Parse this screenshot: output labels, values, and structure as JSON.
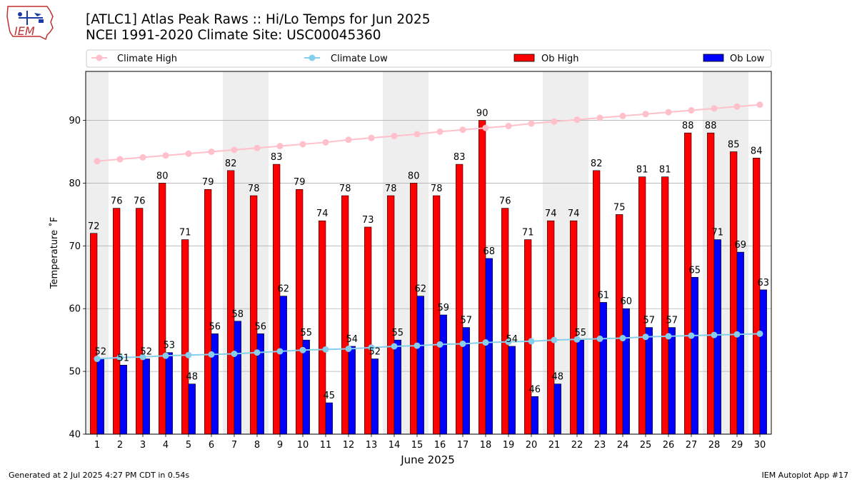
{
  "header": {
    "title_line1": "[ATLC1] Atlas Peak Raws :: Hi/Lo Temps for Jun 2025",
    "title_line2": "NCEI 1991-2020 Climate Site: USC00045360",
    "logo_text": "IEM"
  },
  "footer": {
    "generated": "Generated at 2 Jul 2025 4:27 PM CDT in 0.54s",
    "app": "IEM Autoplot App #17"
  },
  "chart_data": {
    "type": "bar",
    "xlabel": "June 2025",
    "ylabel": "Temperature ˚F",
    "ylim": [
      40,
      97.8
    ],
    "yticks": [
      40,
      50,
      60,
      70,
      80,
      90
    ],
    "grid": true,
    "legend_placement": "top",
    "categories": [
      "1",
      "2",
      "3",
      "4",
      "5",
      "6",
      "7",
      "8",
      "9",
      "10",
      "11",
      "12",
      "13",
      "14",
      "15",
      "16",
      "17",
      "18",
      "19",
      "20",
      "21",
      "22",
      "23",
      "24",
      "25",
      "26",
      "27",
      "28",
      "29",
      "30"
    ],
    "weekend_days": [
      1,
      7,
      8,
      14,
      15,
      21,
      22,
      28,
      29
    ],
    "series": [
      {
        "name": "Ob High",
        "kind": "bar",
        "color": "#ff0000",
        "values": [
          72,
          76,
          76,
          80,
          71,
          79,
          82,
          78,
          83,
          79,
          74,
          78,
          73,
          78,
          80,
          78,
          83,
          90,
          76,
          71,
          74,
          74,
          82,
          75,
          81,
          81,
          88,
          88,
          85,
          84
        ]
      },
      {
        "name": "Ob Low",
        "kind": "bar",
        "color": "#0000ff",
        "values": [
          52,
          51,
          52,
          53,
          48,
          56,
          58,
          56,
          62,
          55,
          45,
          54,
          52,
          55,
          62,
          59,
          57,
          68,
          54,
          46,
          48,
          55,
          61,
          60,
          57,
          57,
          65,
          71,
          69,
          63
        ]
      },
      {
        "name": "Climate High",
        "kind": "line",
        "color": "#ffc0cb",
        "values": [
          83.5,
          83.8,
          84.1,
          84.4,
          84.7,
          85.0,
          85.3,
          85.6,
          85.9,
          86.2,
          86.5,
          86.9,
          87.2,
          87.5,
          87.8,
          88.2,
          88.5,
          88.8,
          89.1,
          89.5,
          89.8,
          90.1,
          90.4,
          90.7,
          91.0,
          91.3,
          91.6,
          91.9,
          92.2,
          92.5
        ]
      },
      {
        "name": "Climate Low",
        "kind": "line",
        "color": "#87ceeb",
        "values": [
          52.0,
          52.2,
          52.3,
          52.5,
          52.6,
          52.7,
          52.8,
          53.0,
          53.2,
          53.4,
          53.5,
          53.6,
          53.8,
          54.0,
          54.1,
          54.3,
          54.4,
          54.6,
          54.7,
          54.8,
          55.0,
          55.1,
          55.2,
          55.3,
          55.5,
          55.6,
          55.7,
          55.8,
          55.9,
          56.0
        ]
      }
    ]
  }
}
